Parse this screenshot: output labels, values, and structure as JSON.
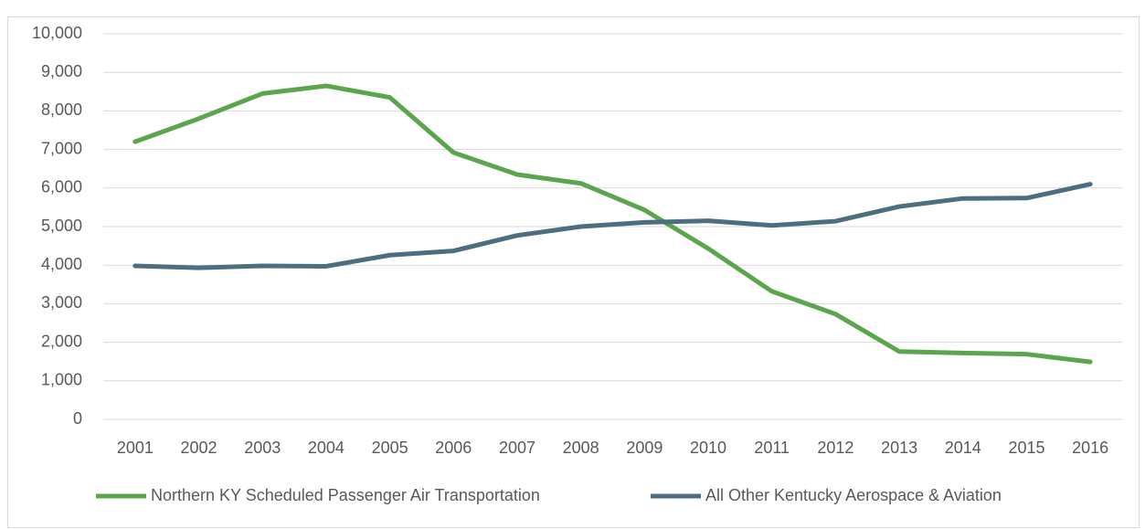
{
  "chart_data": {
    "type": "line",
    "categories": [
      "2001",
      "2002",
      "2003",
      "2004",
      "2005",
      "2006",
      "2007",
      "2008",
      "2009",
      "2010",
      "2011",
      "2012",
      "2013",
      "2014",
      "2015",
      "2016"
    ],
    "series": [
      {
        "name": "Northern KY Scheduled Passenger Air Transportation",
        "color": "#5ba64c",
        "values": [
          7200,
          7800,
          8450,
          8650,
          8350,
          6920,
          6350,
          6120,
          5430,
          4430,
          3320,
          2730,
          1760,
          1720,
          1690,
          1490
        ]
      },
      {
        "name": "All Other Kentucky Aerospace & Aviation",
        "color": "#4c6e80",
        "values": [
          3980,
          3930,
          3980,
          3970,
          4260,
          4370,
          4770,
          5000,
          5110,
          5150,
          5030,
          5140,
          5520,
          5730,
          5740,
          6100
        ]
      }
    ],
    "ylim": [
      0,
      10000
    ],
    "yticks": [
      0,
      {
        "value": 1000,
        "label": "1,000"
      },
      {
        "value": 2000,
        "label": "2,000"
      },
      {
        "value": 3000,
        "label": "3,000"
      },
      {
        "value": 4000,
        "label": "4,000"
      },
      {
        "value": 5000,
        "label": "5,000"
      },
      {
        "value": 6000,
        "label": "6,000"
      },
      {
        "value": 7000,
        "label": "7,000"
      },
      {
        "value": 8000,
        "label": "8,000"
      },
      {
        "value": 9000,
        "label": "9,000"
      },
      {
        "value": 10000,
        "label": "10,000"
      }
    ],
    "grid": true,
    "legend": "bottom"
  }
}
